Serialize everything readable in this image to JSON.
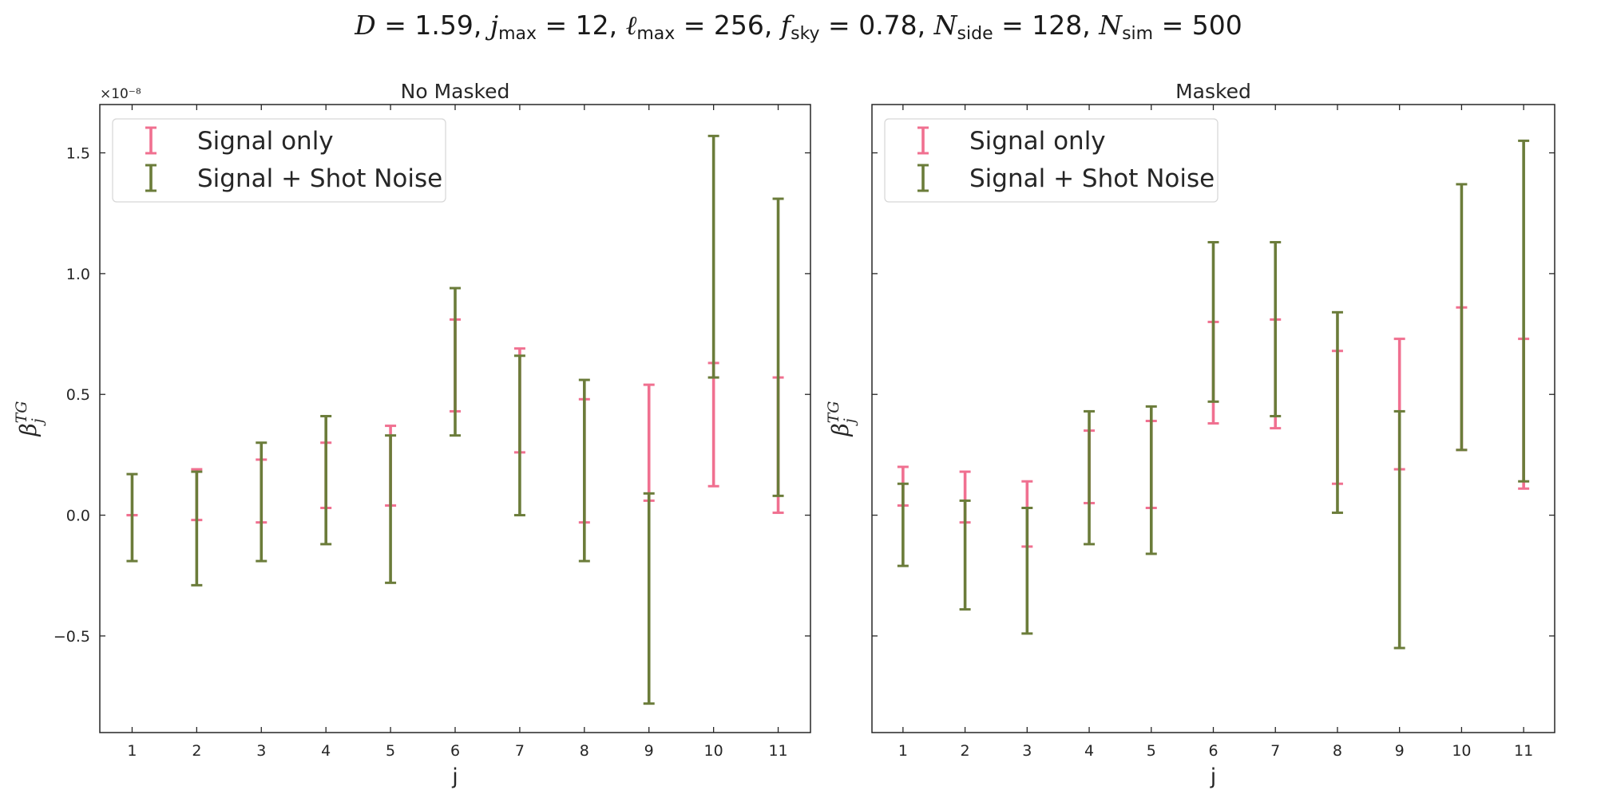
{
  "figure": {
    "title_parts": {
      "D": "D",
      "D_val": " = 1.59,  ",
      "j": "j",
      "j_sub": "max",
      "j_val": " = 12,  ",
      "l": "ℓ",
      "l_sub": "max",
      "l_val": " = 256, ",
      "f": "f",
      "f_sub": "sky",
      "f_val": " = 0.78,  ",
      "N1": "N",
      "N1_sub": "side",
      "N1_val": " = 128, ",
      "N2": "N",
      "N2_sub": "sim",
      "N2_val": " = 500"
    },
    "colors": {
      "signal_only": "#f07090",
      "signal_shot": "#6b7c3a"
    }
  },
  "chart_data": [
    {
      "type": "errorbar",
      "title": "No Masked",
      "xlabel": "j",
      "ylabel": "β_j^{TG}",
      "y_offset_label": "×10⁻⁸",
      "x": [
        1,
        2,
        3,
        4,
        5,
        6,
        7,
        8,
        9,
        10,
        11
      ],
      "xlim": [
        0.5,
        11.5
      ],
      "ylim": [
        -9e-09,
        1.7e-08
      ],
      "yticks": [
        -5e-09,
        0,
        5e-09,
        1e-08,
        1.5e-08
      ],
      "ytick_labels": [
        "−0.5",
        "0.0",
        "0.5",
        "1.0",
        "1.5"
      ],
      "legend": "upper-left",
      "series": [
        {
          "name": "Signal only",
          "low": [
            0.0,
            -2e-10,
            -3e-10,
            3e-10,
            4e-10,
            4.3e-09,
            2.6e-09,
            -3e-10,
            6e-10,
            1.2e-09,
            1e-10
          ],
          "high": [
            0.0,
            1.9e-09,
            2.3e-09,
            3e-09,
            3.7e-09,
            8.1e-09,
            6.9e-09,
            4.8e-09,
            5.4e-09,
            6.3e-09,
            5.7e-09
          ]
        },
        {
          "name": "Signal + Shot Noise",
          "low": [
            -1.9e-09,
            -2.9e-09,
            -1.9e-09,
            -1.2e-09,
            -2.8e-09,
            3.3e-09,
            0.0,
            -1.9e-09,
            -7.8e-09,
            5.7e-09,
            8e-10
          ],
          "high": [
            1.7e-09,
            1.8e-09,
            3e-09,
            4.1e-09,
            3.3e-09,
            9.4e-09,
            6.6e-09,
            5.6e-09,
            9e-10,
            1.57e-08,
            1.31e-08
          ]
        }
      ]
    },
    {
      "type": "errorbar",
      "title": "Masked",
      "xlabel": "j",
      "ylabel": "β_j^{TG}",
      "x": [
        1,
        2,
        3,
        4,
        5,
        6,
        7,
        8,
        9,
        10,
        11
      ],
      "xlim": [
        0.5,
        11.5
      ],
      "ylim": [
        -9e-09,
        1.7e-08
      ],
      "legend": "upper-left",
      "series": [
        {
          "name": "Signal only",
          "low": [
            4e-10,
            -3e-10,
            -1.3e-09,
            5e-10,
            3e-10,
            3.8e-09,
            3.6e-09,
            1.3e-09,
            1.9e-09,
            2.7e-09,
            1.1e-09
          ],
          "high": [
            2e-09,
            1.8e-09,
            1.4e-09,
            3.5e-09,
            3.9e-09,
            8e-09,
            8.1e-09,
            6.8e-09,
            7.3e-09,
            8.6e-09,
            7.3e-09
          ]
        },
        {
          "name": "Signal + Shot Noise",
          "low": [
            -2.1e-09,
            -3.9e-09,
            -4.9e-09,
            -1.2e-09,
            -1.6e-09,
            4.7e-09,
            4.1e-09,
            1e-10,
            -5.5e-09,
            2.7e-09,
            1.4e-09
          ],
          "high": [
            1.3e-09,
            6e-10,
            3e-10,
            4.3e-09,
            4.5e-09,
            1.13e-08,
            1.13e-08,
            8.4e-09,
            4.3e-09,
            1.37e-08,
            1.55e-08
          ]
        }
      ]
    }
  ]
}
